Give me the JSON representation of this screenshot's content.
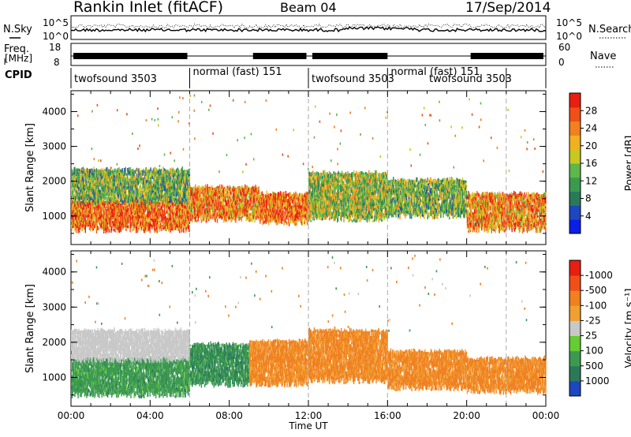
{
  "header": {
    "station": "Rankin Inlet (fitACF)",
    "beam": "Beam 04",
    "date": "17/Sep/2014"
  },
  "noise_panel": {
    "left_label": "N.Sky",
    "right_label": "N.Search",
    "ticks_left": [
      "10^5",
      "10^0"
    ],
    "ticks_right": [
      "10^5",
      "10^0"
    ]
  },
  "freq_panel": {
    "left_label_1": "Freq.",
    "left_label_2": "[MHz]",
    "right_label": "Nave",
    "ticks_left": [
      "18",
      "8"
    ],
    "ticks_right": [
      "60",
      "0"
    ]
  },
  "cpid": {
    "label": "CPID",
    "segments": [
      {
        "name": "twofsound 3503",
        "start_h": 0.0,
        "end_h": 6.0
      },
      {
        "name": "normal (fast) 151",
        "start_h": 6.0,
        "end_h": 12.0
      },
      {
        "name": "twofsound 3503",
        "start_h": 12.0,
        "end_h": 16.0
      },
      {
        "name": "normal (fast) 151",
        "start_h": 16.0,
        "end_h": 22.0
      },
      {
        "name": "twofsound 3503",
        "start_h": 18.0,
        "end_h": 22.0
      }
    ]
  },
  "chart_data": [
    {
      "type": "heatmap",
      "title": "",
      "xlabel": "",
      "ylabel": "Slant Range [km]",
      "xlim": [
        0,
        24
      ],
      "ylim": [
        180,
        4600
      ],
      "yticks": [
        1000,
        2000,
        3000,
        4000
      ],
      "colorbar": {
        "label": "Power [dB]",
        "ticks": [
          "4",
          "8",
          "12",
          "16",
          "20",
          "24",
          "28"
        ],
        "colors": [
          "#0a1ee8",
          "#1e46c0",
          "#2a7a5a",
          "#3c9a50",
          "#5cb84a",
          "#c8c820",
          "#f0b020",
          "#f08020",
          "#f05018",
          "#e81e10"
        ]
      },
      "bands": [
        {
          "t0": 0.0,
          "t1": 6.0,
          "r0": 600,
          "r1": 1400,
          "value": 26
        },
        {
          "t0": 0.0,
          "t1": 6.0,
          "r0": 1400,
          "r1": 2300,
          "value": 14
        },
        {
          "t0": 6.0,
          "t1": 9.5,
          "r0": 900,
          "r1": 1800,
          "value": 24
        },
        {
          "t0": 9.5,
          "t1": 12.0,
          "r0": 800,
          "r1": 1600,
          "value": 26
        },
        {
          "t0": 12.0,
          "t1": 16.0,
          "r0": 900,
          "r1": 2200,
          "value": 16
        },
        {
          "t0": 16.0,
          "t1": 20.0,
          "r0": 1000,
          "r1": 2000,
          "value": 14
        },
        {
          "t0": 20.0,
          "t1": 24.0,
          "r0": 600,
          "r1": 1600,
          "value": 24
        }
      ]
    },
    {
      "type": "heatmap",
      "title": "",
      "xlabel": "Time UT",
      "ylabel": "Slant Range [km]",
      "xlim": [
        0,
        24
      ],
      "ylim": [
        180,
        4600
      ],
      "xticks": [
        "00:00",
        "04:00",
        "08:00",
        "12:00",
        "16:00",
        "20:00",
        "00:00"
      ],
      "yticks": [
        1000,
        2000,
        3000,
        4000
      ],
      "colorbar": {
        "label": "Velocity [m s⁻¹]",
        "ticks": [
          "1000",
          "500",
          "100",
          "25",
          "-25",
          "-100",
          "-500",
          "-1000"
        ],
        "colors": [
          "#1e46c0",
          "#2a7a5a",
          "#3c9a50",
          "#66cc33",
          "#c8c8c8",
          "#f0a030",
          "#f08020",
          "#f05018",
          "#e81e10"
        ]
      },
      "bands": [
        {
          "t0": 0.0,
          "t1": 6.0,
          "r0": 500,
          "r1": 1500,
          "value": 300
        },
        {
          "t0": 0.0,
          "t1": 6.0,
          "r0": 1500,
          "r1": 2300,
          "value": 0
        },
        {
          "t0": 6.0,
          "t1": 9.0,
          "r0": 800,
          "r1": 1900,
          "value": 400
        },
        {
          "t0": 9.0,
          "t1": 12.0,
          "r0": 800,
          "r1": 2000,
          "value": -150
        },
        {
          "t0": 12.0,
          "t1": 16.0,
          "r0": 900,
          "r1": 2300,
          "value": -150
        },
        {
          "t0": 16.0,
          "t1": 20.0,
          "r0": 700,
          "r1": 1700,
          "value": -150
        },
        {
          "t0": 20.0,
          "t1": 24.0,
          "r0": 600,
          "r1": 1500,
          "value": -150
        }
      ]
    }
  ]
}
